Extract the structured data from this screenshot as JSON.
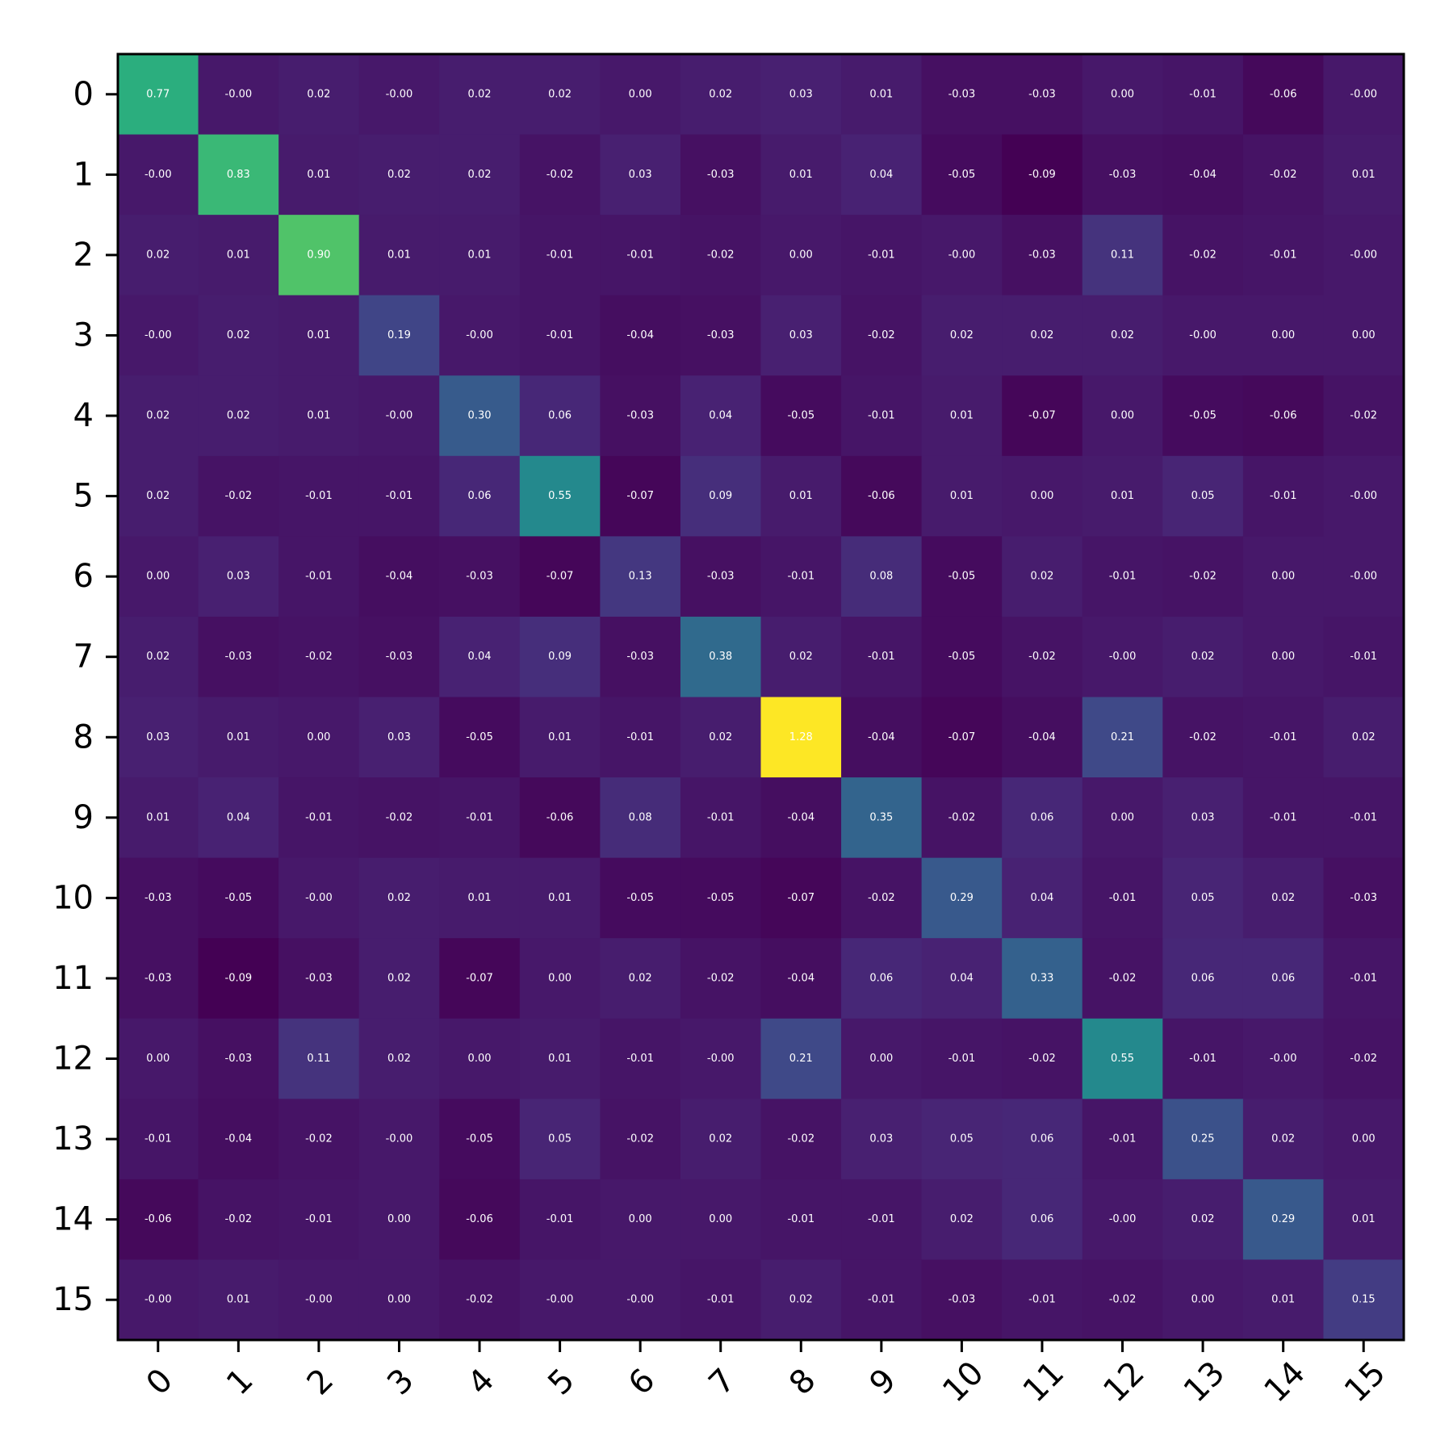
{
  "chart_data": {
    "type": "heatmap",
    "title": "",
    "xlabel": "",
    "ylabel": "",
    "colormap": "viridis",
    "vlim": [
      -0.09,
      1.28
    ],
    "x_tick_labels": [
      "0",
      "1",
      "2",
      "3",
      "4",
      "5",
      "6",
      "7",
      "8",
      "9",
      "10",
      "11",
      "12",
      "13",
      "14",
      "15"
    ],
    "y_tick_labels": [
      "0",
      "1",
      "2",
      "3",
      "4",
      "5",
      "6",
      "7",
      "8",
      "9",
      "10",
      "11",
      "12",
      "13",
      "14",
      "15"
    ],
    "cell_labels": [
      [
        "0.77",
        "-0.00",
        "0.02",
        "-0.00",
        "0.02",
        "0.02",
        "0.00",
        "0.02",
        "0.03",
        "0.01",
        "-0.03",
        "-0.03",
        "0.00",
        "-0.01",
        "-0.06",
        "-0.00"
      ],
      [
        "-0.00",
        "0.83",
        "0.01",
        "0.02",
        "0.02",
        "-0.02",
        "0.03",
        "-0.03",
        "0.01",
        "0.04",
        "-0.05",
        "-0.09",
        "-0.03",
        "-0.04",
        "-0.02",
        "0.01"
      ],
      [
        "0.02",
        "0.01",
        "0.90",
        "0.01",
        "0.01",
        "-0.01",
        "-0.01",
        "-0.02",
        "0.00",
        "-0.01",
        "-0.00",
        "-0.03",
        "0.11",
        "-0.02",
        "-0.01",
        "-0.00"
      ],
      [
        "-0.00",
        "0.02",
        "0.01",
        "0.19",
        "-0.00",
        "-0.01",
        "-0.04",
        "-0.03",
        "0.03",
        "-0.02",
        "0.02",
        "0.02",
        "0.02",
        "-0.00",
        "0.00",
        "0.00"
      ],
      [
        "0.02",
        "0.02",
        "0.01",
        "-0.00",
        "0.30",
        "0.06",
        "-0.03",
        "0.04",
        "-0.05",
        "-0.01",
        "0.01",
        "-0.07",
        "0.00",
        "-0.05",
        "-0.06",
        "-0.02"
      ],
      [
        "0.02",
        "-0.02",
        "-0.01",
        "-0.01",
        "0.06",
        "0.55",
        "-0.07",
        "0.09",
        "0.01",
        "-0.06",
        "0.01",
        "0.00",
        "0.01",
        "0.05",
        "-0.01",
        "-0.00"
      ],
      [
        "0.00",
        "0.03",
        "-0.01",
        "-0.04",
        "-0.03",
        "-0.07",
        "0.13",
        "-0.03",
        "-0.01",
        "0.08",
        "-0.05",
        "0.02",
        "-0.01",
        "-0.02",
        "0.00",
        "-0.00"
      ],
      [
        "0.02",
        "-0.03",
        "-0.02",
        "-0.03",
        "0.04",
        "0.09",
        "-0.03",
        "0.38",
        "0.02",
        "-0.01",
        "-0.05",
        "-0.02",
        "-0.00",
        "0.02",
        "0.00",
        "-0.01"
      ],
      [
        "0.03",
        "0.01",
        "0.00",
        "0.03",
        "-0.05",
        "0.01",
        "-0.01",
        "0.02",
        "1.28",
        "-0.04",
        "-0.07",
        "-0.04",
        "0.21",
        "-0.02",
        "-0.01",
        "0.02"
      ],
      [
        "0.01",
        "0.04",
        "-0.01",
        "-0.02",
        "-0.01",
        "-0.06",
        "0.08",
        "-0.01",
        "-0.04",
        "0.35",
        "-0.02",
        "0.06",
        "0.00",
        "0.03",
        "-0.01",
        "-0.01"
      ],
      [
        "-0.03",
        "-0.05",
        "-0.00",
        "0.02",
        "0.01",
        "0.01",
        "-0.05",
        "-0.05",
        "-0.07",
        "-0.02",
        "0.29",
        "0.04",
        "-0.01",
        "0.05",
        "0.02",
        "-0.03"
      ],
      [
        "-0.03",
        "-0.09",
        "-0.03",
        "0.02",
        "-0.07",
        "0.00",
        "0.02",
        "-0.02",
        "-0.04",
        "0.06",
        "0.04",
        "0.33",
        "-0.02",
        "0.06",
        "0.06",
        "-0.01"
      ],
      [
        "0.00",
        "-0.03",
        "0.11",
        "0.02",
        "0.00",
        "0.01",
        "-0.01",
        "-0.00",
        "0.21",
        "0.00",
        "-0.01",
        "-0.02",
        "0.55",
        "-0.01",
        "-0.00",
        "-0.02"
      ],
      [
        "-0.01",
        "-0.04",
        "-0.02",
        "-0.00",
        "-0.05",
        "0.05",
        "-0.02",
        "0.02",
        "-0.02",
        "0.03",
        "0.05",
        "0.06",
        "-0.01",
        "0.25",
        "0.02",
        "0.00"
      ],
      [
        "-0.06",
        "-0.02",
        "-0.01",
        "0.00",
        "-0.06",
        "-0.01",
        "0.00",
        "0.00",
        "-0.01",
        "-0.01",
        "0.02",
        "0.06",
        "-0.00",
        "0.02",
        "0.29",
        "0.01"
      ],
      [
        "-0.00",
        "0.01",
        "-0.00",
        "0.00",
        "-0.02",
        "-0.00",
        "-0.00",
        "-0.01",
        "0.02",
        "-0.01",
        "-0.03",
        "-0.01",
        "-0.02",
        "0.00",
        "0.01",
        "0.15"
      ]
    ],
    "grid": false,
    "legend": "none"
  }
}
